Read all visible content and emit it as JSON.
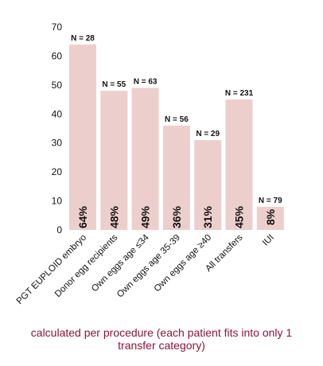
{
  "chart_data": {
    "type": "bar",
    "categories": [
      "PGT EUPLOID embryo",
      "Donor egg recipients",
      "Own eggs age ≤34",
      "Own eggs age 35-39",
      "Own eggs age ≥40",
      "All transfers",
      "IUI"
    ],
    "values": [
      64,
      48,
      49,
      36,
      31,
      45,
      8
    ],
    "n_labels": [
      "N = 28",
      "N = 55",
      "N = 63",
      "N = 56",
      "N = 29",
      "N = 231",
      "N = 79"
    ],
    "pct_labels": [
      "64%",
      "48%",
      "49%",
      "36%",
      "31%",
      "45%",
      "8%"
    ],
    "yticks": [
      0,
      10,
      20,
      30,
      40,
      50,
      60,
      70
    ],
    "ylim": [
      0,
      70
    ],
    "grid": false,
    "bar_color": "#eccfcc",
    "caption_line1": "calculated per procedure (each patient fits into only 1",
    "caption_line2": "transfer category)",
    "caption_color": "#8a1538"
  }
}
